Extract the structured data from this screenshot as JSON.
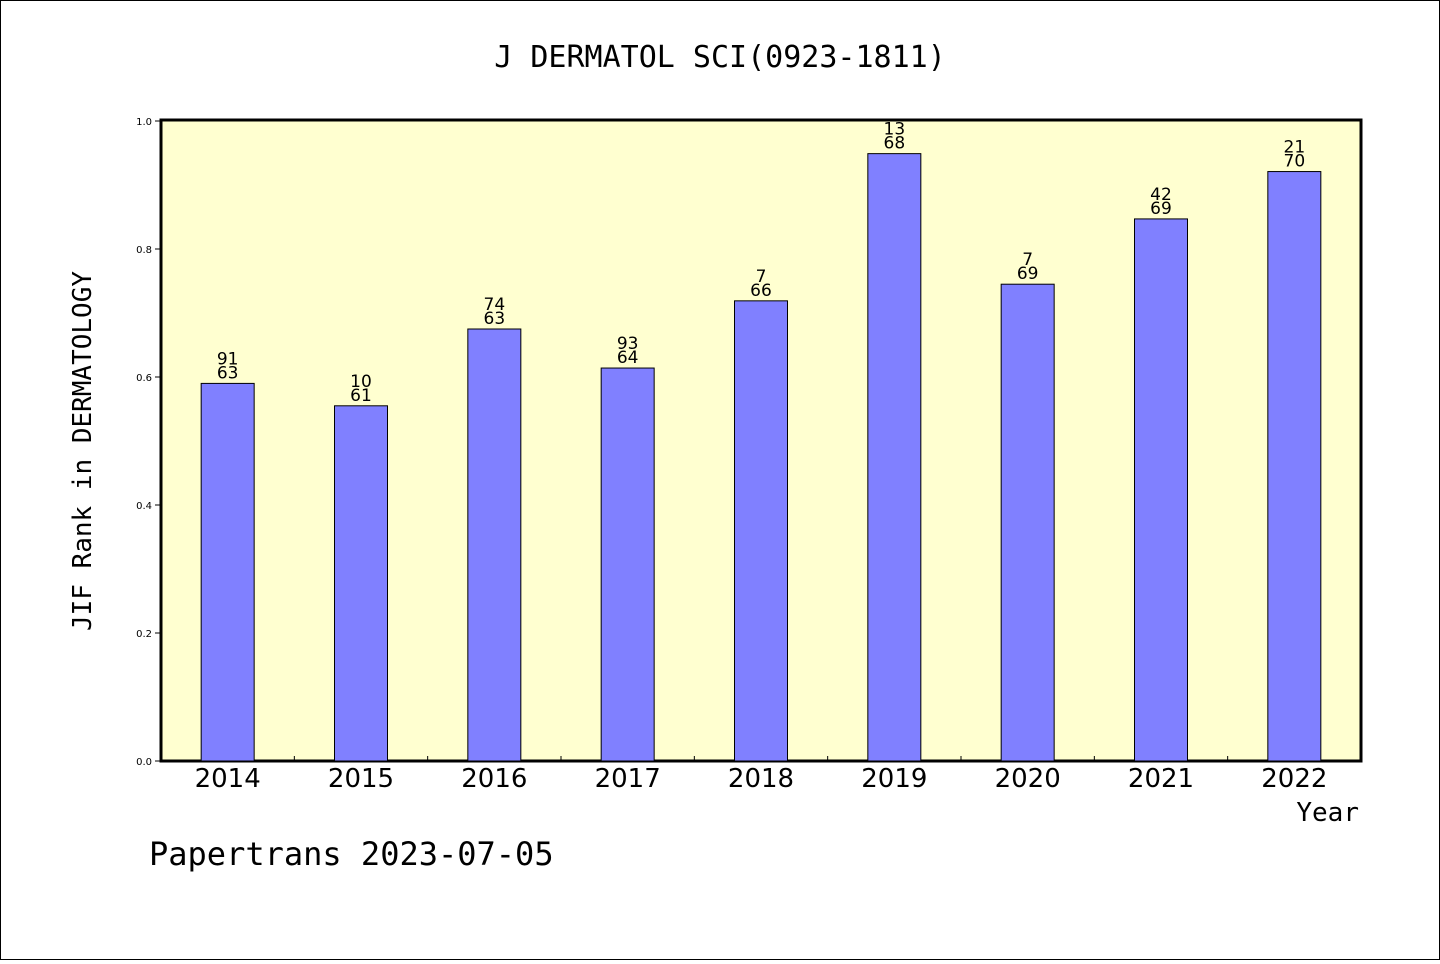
{
  "chart_data": {
    "type": "bar",
    "title": "J DERMATOL SCI(0923-1811)",
    "xlabel": "Year",
    "ylabel": "JIF Rank in DERMATOLOGY",
    "footer": "Papertrans 2023-07-05",
    "ylim": [
      0,
      1.0
    ],
    "yticks": [
      "0.0",
      "0.2",
      "0.4",
      "0.6",
      "0.8",
      "1.0"
    ],
    "categories": [
      "2014",
      "2015",
      "2016",
      "2017",
      "2018",
      "2019",
      "2020",
      "2021",
      "2022"
    ],
    "values": [
      0.59,
      0.555,
      0.675,
      0.614,
      0.719,
      0.949,
      0.745,
      0.847,
      0.921
    ],
    "label_top": [
      "91",
      "10",
      "74",
      "93",
      "7",
      "13",
      "7",
      "42",
      "21"
    ],
    "label_bottom": [
      "63",
      "61",
      "63",
      "64",
      "66",
      "68",
      "69",
      "69",
      "70"
    ],
    "colors": {
      "bar": "#8080ff",
      "plot_bg": "#ffffd0",
      "frame": "#000000"
    }
  }
}
